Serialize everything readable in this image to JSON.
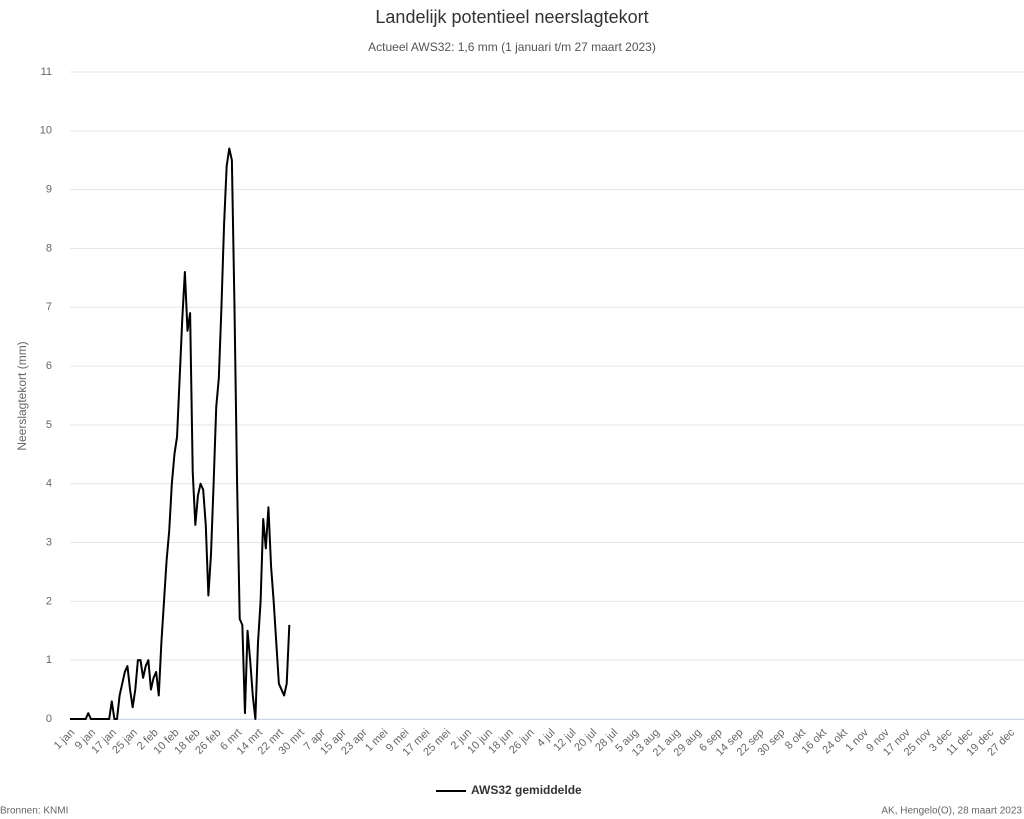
{
  "chart_data": {
    "type": "line",
    "title": "Landelijk potentieel neerslagtekort",
    "subtitle": "Actueel AWS32: 1,6 mm (1 januari t/m 27 maart 2023)",
    "y_label": "Neerslagtekort (mm)",
    "source": "Bronnen: KNMI",
    "credit": "AK, Hengelo(O), 28 maart 2023",
    "ylim": [
      0,
      11
    ],
    "yticks": [
      0,
      1,
      2,
      3,
      4,
      5,
      6,
      7,
      8,
      9,
      10,
      11
    ],
    "grid": true,
    "legend": "bottom",
    "categories": [
      "1 jan",
      null,
      null,
      null,
      null,
      null,
      null,
      null,
      "9 jan",
      null,
      null,
      null,
      null,
      null,
      null,
      null,
      "17 jan",
      null,
      null,
      null,
      null,
      null,
      null,
      null,
      "25 jan",
      null,
      null,
      null,
      null,
      null,
      null,
      null,
      "2 feb",
      null,
      null,
      null,
      null,
      null,
      null,
      null,
      "10 feb",
      null,
      null,
      null,
      null,
      null,
      null,
      null,
      "18 feb",
      null,
      null,
      null,
      null,
      null,
      null,
      null,
      "26 feb",
      null,
      null,
      null,
      null,
      null,
      null,
      null,
      "6 mrt",
      null,
      null,
      null,
      null,
      null,
      null,
      null,
      "14 mrt",
      null,
      null,
      null,
      null,
      null,
      null,
      null,
      "22 mrt",
      null,
      null,
      null,
      null,
      null,
      null,
      null,
      "30 mrt",
      null,
      null,
      null,
      null,
      null,
      null,
      null,
      "7 apr",
      null,
      null,
      null,
      null,
      null,
      null,
      null,
      "15 apr",
      null,
      null,
      null,
      null,
      null,
      null,
      null,
      "23 apr",
      null,
      null,
      null,
      null,
      null,
      null,
      null,
      "1 mei",
      null,
      null,
      null,
      null,
      null,
      null,
      null,
      "9 mei",
      null,
      null,
      null,
      null,
      null,
      null,
      null,
      "17 mei",
      null,
      null,
      null,
      null,
      null,
      null,
      null,
      "25 mei",
      null,
      null,
      null,
      null,
      null,
      null,
      null,
      "2 jun",
      null,
      null,
      null,
      null,
      null,
      null,
      null,
      "10 jun",
      null,
      null,
      null,
      null,
      null,
      null,
      null,
      "18 jun",
      null,
      null,
      null,
      null,
      null,
      null,
      null,
      "26 jun",
      null,
      null,
      null,
      null,
      null,
      null,
      null,
      "4 jul",
      null,
      null,
      null,
      null,
      null,
      null,
      null,
      "12 jul",
      null,
      null,
      null,
      null,
      null,
      null,
      null,
      "20 jul",
      null,
      null,
      null,
      null,
      null,
      null,
      null,
      "28 jul",
      null,
      null,
      null,
      null,
      null,
      null,
      null,
      "5 aug",
      null,
      null,
      null,
      null,
      null,
      null,
      null,
      "13 aug",
      null,
      null,
      null,
      null,
      null,
      null,
      null,
      "21 aug",
      null,
      null,
      null,
      null,
      null,
      null,
      null,
      "29 aug",
      null,
      null,
      null,
      null,
      null,
      null,
      null,
      "6 sep",
      null,
      null,
      null,
      null,
      null,
      null,
      null,
      "14 sep",
      null,
      null,
      null,
      null,
      null,
      null,
      null,
      "22 sep",
      null,
      null,
      null,
      null,
      null,
      null,
      null,
      "30 sep",
      null,
      null,
      null,
      null,
      null,
      null,
      null,
      "8 okt",
      null,
      null,
      null,
      null,
      null,
      null,
      null,
      "16 okt",
      null,
      null,
      null,
      null,
      null,
      null,
      null,
      "24 okt",
      null,
      null,
      null,
      null,
      null,
      null,
      null,
      "1 nov",
      null,
      null,
      null,
      null,
      null,
      null,
      null,
      "9 nov",
      null,
      null,
      null,
      null,
      null,
      null,
      null,
      "17 nov",
      null,
      null,
      null,
      null,
      null,
      null,
      null,
      "25 nov",
      null,
      null,
      null,
      null,
      null,
      null,
      null,
      "3 dec",
      null,
      null,
      null,
      null,
      null,
      null,
      null,
      "11 dec",
      null,
      null,
      null,
      null,
      null,
      null,
      null,
      "19 dec",
      null,
      null,
      null,
      null,
      null,
      null,
      null,
      "27 dec",
      null,
      null,
      null,
      null
    ],
    "series": [
      {
        "name": "AWS32 gemiddelde",
        "color": "#000000",
        "values": [
          0,
          0,
          0,
          0,
          0,
          0,
          0,
          0.1,
          0,
          0,
          0,
          0,
          0,
          0,
          0,
          0,
          0.3,
          0,
          0,
          0.4,
          0.6,
          0.8,
          0.9,
          0.5,
          0.2,
          0.5,
          1.0,
          1.0,
          0.7,
          0.9,
          1.0,
          0.5,
          0.7,
          0.8,
          0.4,
          1.3,
          2.0,
          2.7,
          3.2,
          4.0,
          4.5,
          4.8,
          5.8,
          6.8,
          7.6,
          6.6,
          6.9,
          4.2,
          3.3,
          3.8,
          4.0,
          3.9,
          3.3,
          2.1,
          2.8,
          4.0,
          5.3,
          5.8,
          7.0,
          8.4,
          9.4,
          9.7,
          9.5,
          7.0,
          4.0,
          1.7,
          1.6,
          0.1,
          1.5,
          1.0,
          0.4,
          0,
          1.3,
          2.0,
          3.4,
          2.9,
          3.6,
          2.6,
          2.0,
          1.3,
          0.6,
          0.5,
          0.4,
          0.6,
          1.6,
          null,
          null,
          null,
          null,
          null,
          null,
          null,
          null,
          null,
          null,
          null,
          null,
          null,
          null,
          null,
          null,
          null,
          null,
          null,
          null,
          null,
          null,
          null,
          null,
          null,
          null,
          null,
          null,
          null,
          null,
          null,
          null,
          null,
          null,
          null,
          null,
          null,
          null,
          null,
          null,
          null,
          null,
          null,
          null,
          null,
          null,
          null,
          null,
          null,
          null,
          null,
          null,
          null,
          null,
          null,
          null,
          null,
          null,
          null,
          null,
          null,
          null,
          null,
          null,
          null,
          null,
          null,
          null,
          null,
          null,
          null,
          null,
          null,
          null,
          null,
          null,
          null,
          null,
          null,
          null,
          null,
          null,
          null,
          null,
          null,
          null,
          null,
          null,
          null,
          null,
          null,
          null,
          null,
          null,
          null,
          null,
          null,
          null,
          null,
          null,
          null,
          null,
          null,
          null,
          null,
          null,
          null,
          null,
          null,
          null,
          null,
          null,
          null,
          null,
          null,
          null,
          null,
          null,
          null,
          null,
          null,
          null,
          null,
          null,
          null,
          null,
          null,
          null,
          null,
          null,
          null,
          null,
          null,
          null,
          null,
          null,
          null,
          null,
          null,
          null,
          null,
          null,
          null,
          null,
          null,
          null,
          null,
          null,
          null,
          null,
          null,
          null,
          null,
          null,
          null,
          null,
          null,
          null,
          null,
          null,
          null,
          null,
          null,
          null,
          null,
          null,
          null,
          null,
          null,
          null,
          null,
          null,
          null,
          null,
          null,
          null,
          null,
          null,
          null,
          null,
          null,
          null,
          null,
          null,
          null,
          null,
          null,
          null,
          null,
          null,
          null,
          null,
          null,
          null,
          null,
          null,
          null,
          null,
          null,
          null,
          null,
          null,
          null,
          null,
          null,
          null,
          null,
          null,
          null,
          null,
          null,
          null,
          null,
          null,
          null,
          null,
          null,
          null,
          null,
          null,
          null,
          null,
          null,
          null,
          null,
          null,
          null,
          null,
          null,
          null,
          null,
          null,
          null,
          null,
          null,
          null,
          null,
          null,
          null,
          null,
          null,
          null,
          null,
          null,
          null,
          null,
          null,
          null,
          null,
          null,
          null,
          null,
          null,
          null,
          null,
          null,
          null,
          null,
          null,
          null,
          null,
          null,
          null,
          null,
          null,
          null,
          null,
          null,
          null,
          null,
          null,
          null,
          null,
          null,
          null,
          null,
          null,
          null,
          null,
          null
        ]
      }
    ]
  }
}
